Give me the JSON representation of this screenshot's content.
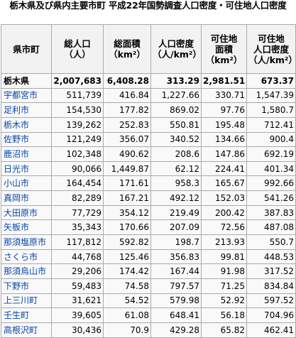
{
  "caption": "栃木県及び県内主要市町 平成22年国勢調査人口密度・可住地人口密度",
  "headers": [
    [
      "県市町"
    ],
    [
      "総人口",
      "（人）"
    ],
    [
      "総面積",
      "（km²）"
    ],
    [
      "人口密度",
      "（人/km²）"
    ],
    [
      "可住地",
      "面積",
      "（km²）"
    ],
    [
      "可住地",
      "人口密度",
      "（人/km²）"
    ]
  ],
  "prefecture": {
    "name": "栃木県",
    "population": "2,007,683",
    "area": "6,408.28",
    "density": "313.29",
    "habitable_area": "2,981.51",
    "habitable_density": "673.37"
  },
  "rows": [
    {
      "name": "宇都宮市",
      "population": "511,739",
      "area": "416.84",
      "density": "1,227.66",
      "habitable_area": "330.71",
      "habitable_density": "1,547.39"
    },
    {
      "name": "足利市",
      "population": "154,530",
      "area": "177.82",
      "density": "869.02",
      "habitable_area": "97.76",
      "habitable_density": "1,580.7"
    },
    {
      "name": "栃木市",
      "population": "139,262",
      "area": "252.83",
      "density": "550.81",
      "habitable_area": "195.48",
      "habitable_density": "712.41"
    },
    {
      "name": "佐野市",
      "population": "121,249",
      "area": "356.07",
      "density": "340.52",
      "habitable_area": "134.66",
      "habitable_density": "900.4"
    },
    {
      "name": "鹿沼市",
      "population": "102,348",
      "area": "490.62",
      "density": "208.6",
      "habitable_area": "147.86",
      "habitable_density": "692.19"
    },
    {
      "name": "日光市",
      "population": "90,066",
      "area": "1,449.87",
      "density": "62.12",
      "habitable_area": "224.41",
      "habitable_density": "401.34"
    },
    {
      "name": "小山市",
      "population": "164,454",
      "area": "171.61",
      "density": "958.3",
      "habitable_area": "165.67",
      "habitable_density": "992.66"
    },
    {
      "name": "真岡市",
      "population": "82,289",
      "area": "167.21",
      "density": "492.12",
      "habitable_area": "152.03",
      "habitable_density": "541.26"
    },
    {
      "name": "大田原市",
      "population": "77,729",
      "area": "354.12",
      "density": "219.49",
      "habitable_area": "200.42",
      "habitable_density": "387.83"
    },
    {
      "name": "矢板市",
      "population": "35,343",
      "area": "170.66",
      "density": "207.09",
      "habitable_area": "72.56",
      "habitable_density": "487.08"
    },
    {
      "name": "那須塩原市",
      "population": "117,812",
      "area": "592.82",
      "density": "198.7",
      "habitable_area": "213.93",
      "habitable_density": "550.7"
    },
    {
      "name": "さくら市",
      "population": "44,768",
      "area": "125.46",
      "density": "356.83",
      "habitable_area": "99.81",
      "habitable_density": "448.53"
    },
    {
      "name": "那須烏山市",
      "population": "29,206",
      "area": "174.42",
      "density": "167.44",
      "habitable_area": "91.98",
      "habitable_density": "317.52"
    },
    {
      "name": "下野市",
      "population": "59,483",
      "area": "74.58",
      "density": "797.57",
      "habitable_area": "71.25",
      "habitable_density": "834.84"
    },
    {
      "name": "上三川町",
      "population": "31,621",
      "area": "54.52",
      "density": "579.98",
      "habitable_area": "52.92",
      "habitable_density": "597.52"
    },
    {
      "name": "壬生町",
      "population": "39,605",
      "area": "61.08",
      "density": "648.41",
      "habitable_area": "56.18",
      "habitable_density": "704.96"
    },
    {
      "name": "高根沢町",
      "population": "30,436",
      "area": "70.9",
      "density": "429.28",
      "habitable_area": "65.82",
      "habitable_density": "462.41"
    }
  ],
  "colors": {
    "link": "#0645ad",
    "header_bg": "#f2f2f2",
    "cell_bg": "#f9f9f9",
    "border": "#aaaaaa"
  }
}
